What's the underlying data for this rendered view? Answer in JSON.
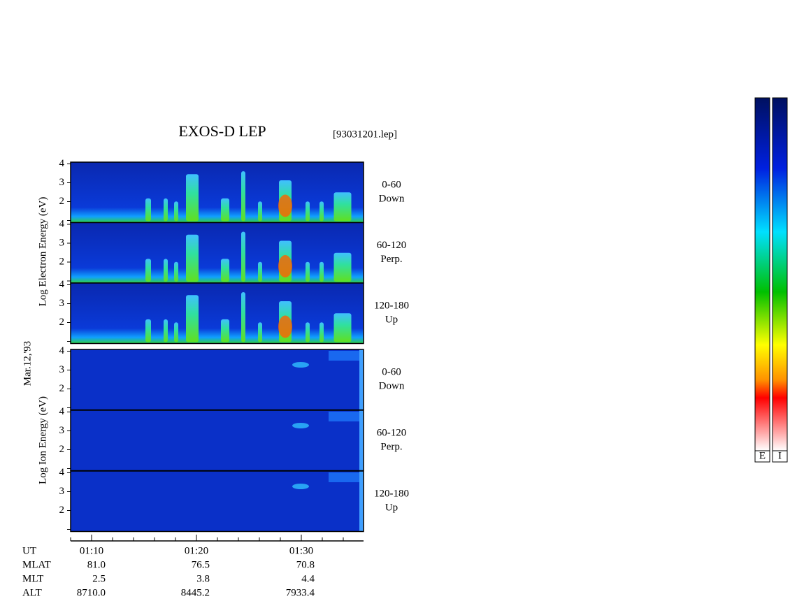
{
  "header": {
    "title": "EXOS-D LEP",
    "file": "[93031201.lep]"
  },
  "date": "Mar.12,'93",
  "electron": {
    "axis_label": "Log Electron Energy (eV)",
    "panels": [
      {
        "range": "0-60",
        "direction": "Down"
      },
      {
        "range": "60-120",
        "direction": "Perp."
      },
      {
        "range": "120-180",
        "direction": "Up"
      }
    ]
  },
  "ion": {
    "axis_label": "Log Ion Energy (eV)",
    "panels": [
      {
        "range": "0-60",
        "direction": "Down"
      },
      {
        "range": "60-120",
        "direction": "Perp."
      },
      {
        "range": "120-180",
        "direction": "Up"
      }
    ]
  },
  "energy_ticks": [
    2,
    3,
    4
  ],
  "time_axis": {
    "label": "UT",
    "ticks": [
      "01:10",
      "01:20",
      "01:30"
    ]
  },
  "ephemeris": [
    {
      "label": "MLAT",
      "values": [
        "81.0",
        "76.5",
        "70.8"
      ]
    },
    {
      "label": "MLT",
      "values": [
        "2.5",
        "3.8",
        "4.4"
      ]
    },
    {
      "label": "ALT",
      "values": [
        "8710.0",
        "8445.2",
        "7933.4"
      ]
    }
  ],
  "colorbars": [
    "E",
    "I"
  ]
}
